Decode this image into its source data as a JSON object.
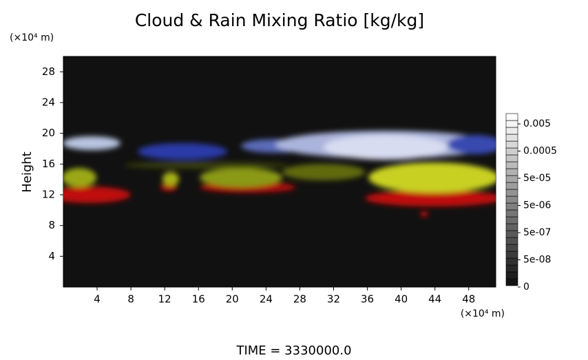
{
  "chart_data": {
    "type": "heatmap",
    "title": "Cloud & Rain Mixing Ratio [kg/kg]",
    "y_label": "Height",
    "x_unit": "(×10⁴ m)",
    "y_unit": "(×10⁴ m)",
    "xlim": [
      0,
      51.2
    ],
    "xticks": [
      4,
      8,
      12,
      16,
      20,
      24,
      28,
      32,
      36,
      40,
      44,
      48
    ],
    "ylim": [
      0,
      30
    ],
    "yticks": [
      4,
      8,
      12,
      16,
      20,
      24,
      28
    ],
    "colorbar_ticks": [
      {
        "value": 0.005,
        "label": "0.005"
      },
      {
        "value": 0.0005,
        "label": "0.0005"
      },
      {
        "value": 5e-05,
        "label": "5e-05"
      },
      {
        "value": 5e-06,
        "label": "5e-06"
      },
      {
        "value": 5e-07,
        "label": "5e-07"
      },
      {
        "value": 5e-08,
        "label": "5e-08"
      },
      0
    ],
    "footer": "TIME = 3330000.0"
  }
}
